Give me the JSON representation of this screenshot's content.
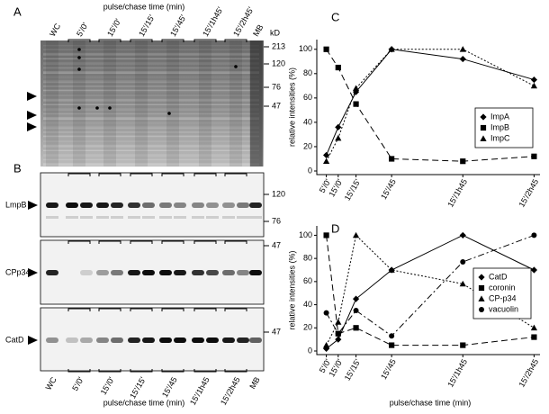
{
  "gel_panel_a": {
    "letter": "A",
    "title": "pulse/chase time (min)",
    "lanes": [
      "WC",
      "5'/0'",
      "15'/0'",
      "15'/15'",
      "15'/45'",
      "15'/1h45'",
      "15'/2h45'",
      "MB"
    ],
    "kd_unit": "kD",
    "kd_markers": [
      213,
      120,
      76,
      47
    ]
  },
  "gel_panel_b": {
    "letter": "B",
    "xlabel": "pulse/chase time (min)",
    "lanes": [
      "WC",
      "5'/0'",
      "15'/0'",
      "15'/15'",
      "15'/45",
      "15'/1h45",
      "15'/2h45",
      "MB"
    ],
    "blots": [
      {
        "name": "LmpB",
        "kd_markers": [
          120,
          76
        ]
      },
      {
        "name": "CPp34",
        "kd_markers": [
          47
        ]
      },
      {
        "name": "CatD",
        "kd_markers": [
          47
        ]
      }
    ]
  },
  "chart_data": [
    {
      "type": "line",
      "letter": "C",
      "ylabel": "relative intensities (%)",
      "x": [
        5,
        15,
        30,
        60,
        120,
        180
      ],
      "xlim": [
        0,
        185
      ],
      "xticks": [
        {
          "value": 5,
          "label": "5'/0'"
        },
        {
          "value": 15,
          "label": "15'/0'"
        },
        {
          "value": 30,
          "label": "15'/15'"
        },
        {
          "value": 60,
          "label": "15'/45"
        },
        {
          "value": 120,
          "label": "15'/1h45"
        },
        {
          "value": 180,
          "label": "15'/2h45"
        }
      ],
      "ylim": [
        0,
        105
      ],
      "yticks": [
        0,
        20,
        40,
        60,
        80,
        100
      ],
      "legend": "right",
      "series": [
        {
          "name": "ImpA",
          "marker": "diamond",
          "dash": "solid",
          "color": "#000000",
          "values": [
            13,
            36,
            65,
            100,
            92,
            75
          ]
        },
        {
          "name": "ImpB",
          "marker": "square",
          "dash": "dashed",
          "color": "#000000",
          "values": [
            100,
            85,
            55,
            10,
            8,
            12
          ]
        },
        {
          "name": "ImpC",
          "marker": "triangle",
          "dash": "dotted",
          "color": "#000000",
          "values": [
            8,
            27,
            68,
            100,
            100,
            70
          ]
        }
      ]
    },
    {
      "type": "line",
      "letter": "D",
      "ylabel": "relative intensities (%)",
      "xlabel": "pulse/chase time (min)",
      "x": [
        5,
        15,
        30,
        60,
        120,
        180
      ],
      "xlim": [
        0,
        185
      ],
      "xticks": [
        {
          "value": 5,
          "label": "5'/0'"
        },
        {
          "value": 15,
          "label": "15'/0'"
        },
        {
          "value": 30,
          "label": "15'/15'"
        },
        {
          "value": 60,
          "label": "15'/45"
        },
        {
          "value": 120,
          "label": "15'/1h45"
        },
        {
          "value": 180,
          "label": "15'/2h45"
        }
      ],
      "ylim": [
        0,
        105
      ],
      "yticks": [
        0,
        20,
        40,
        60,
        80,
        100
      ],
      "legend": "right",
      "series": [
        {
          "name": "CatD",
          "marker": "diamond",
          "dash": "solid",
          "color": "#000000",
          "values": [
            2,
            10,
            45,
            70,
            100,
            70
          ]
        },
        {
          "name": "coronin",
          "marker": "square",
          "dash": "dashed",
          "color": "#000000",
          "values": [
            100,
            15,
            20,
            5,
            5,
            12
          ]
        },
        {
          "name": "CP-p34",
          "marker": "triangle",
          "dash": "dotted",
          "color": "#000000",
          "values": [
            5,
            25,
            100,
            70,
            58,
            20
          ]
        },
        {
          "name": "vacuolin",
          "marker": "circle",
          "dash": "dashdot",
          "color": "#000000",
          "values": [
            33,
            15,
            35,
            13,
            77,
            100
          ]
        }
      ]
    }
  ]
}
